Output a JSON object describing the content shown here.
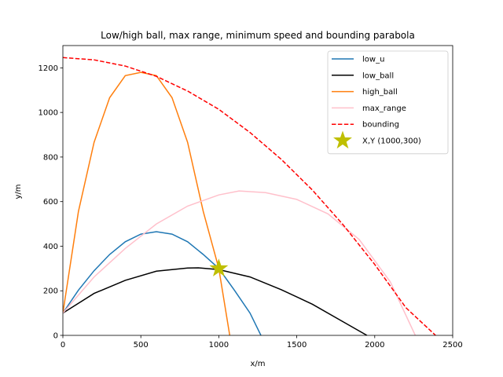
{
  "chart_data": {
    "type": "line",
    "title": "Low/high ball, max range, minimum speed and bounding parabola",
    "xlabel": "x/m",
    "ylabel": "y/m",
    "xlim": [
      0,
      2500
    ],
    "ylim": [
      0,
      1300
    ],
    "xticks": [
      0,
      500,
      1000,
      1500,
      2000,
      2500
    ],
    "yticks": [
      0,
      200,
      400,
      600,
      800,
      1000,
      1200
    ],
    "grid": false,
    "legend_position": "top-right",
    "series": [
      {
        "name": "low_u",
        "color": "#1f77b4",
        "dash": "solid",
        "x": [
          0,
          100,
          200,
          300,
          400,
          500,
          600,
          700,
          800,
          900,
          1000,
          1100,
          1200,
          1270
        ],
        "y": [
          100,
          203,
          290,
          363,
          420,
          454,
          465,
          454,
          420,
          363,
          300,
          203,
          100,
          0
        ]
      },
      {
        "name": "low_ball",
        "color": "#000000",
        "dash": "solid",
        "x": [
          0,
          200,
          400,
          600,
          800,
          870,
          1000,
          1200,
          1400,
          1600,
          1800,
          1950
        ],
        "y": [
          100,
          188,
          247,
          288,
          302,
          303,
          295,
          262,
          205,
          140,
          60,
          0
        ]
      },
      {
        "name": "high_ball",
        "color": "#ff7f0e",
        "dash": "solid",
        "x": [
          0,
          100,
          200,
          300,
          400,
          500,
          600,
          700,
          800,
          900,
          1000,
          1070
        ],
        "y": [
          100,
          556,
          866,
          1066,
          1165,
          1180,
          1165,
          1066,
          866,
          556,
          300,
          0
        ]
      },
      {
        "name": "max_range",
        "color": "#ffc0cb",
        "dash": "solid",
        "x": [
          0,
          200,
          400,
          600,
          800,
          1000,
          1130,
          1300,
          1500,
          1700,
          1900,
          2100,
          2260
        ],
        "y": [
          100,
          262,
          390,
          500,
          580,
          630,
          648,
          640,
          610,
          545,
          430,
          240,
          0
        ]
      },
      {
        "name": "bounding",
        "color": "#ff0000",
        "dash": "dashed",
        "x": [
          0,
          200,
          400,
          600,
          800,
          1000,
          1200,
          1400,
          1600,
          1800,
          2000,
          2200,
          2390
        ],
        "y": [
          1246,
          1236,
          1208,
          1162,
          1096,
          1014,
          910,
          790,
          652,
          494,
          318,
          124,
          0
        ]
      }
    ],
    "markers": [
      {
        "name": "X,Y (1000,300)",
        "x": 1000,
        "y": 300,
        "symbol": "star",
        "color": "#bfbf00"
      }
    ]
  }
}
